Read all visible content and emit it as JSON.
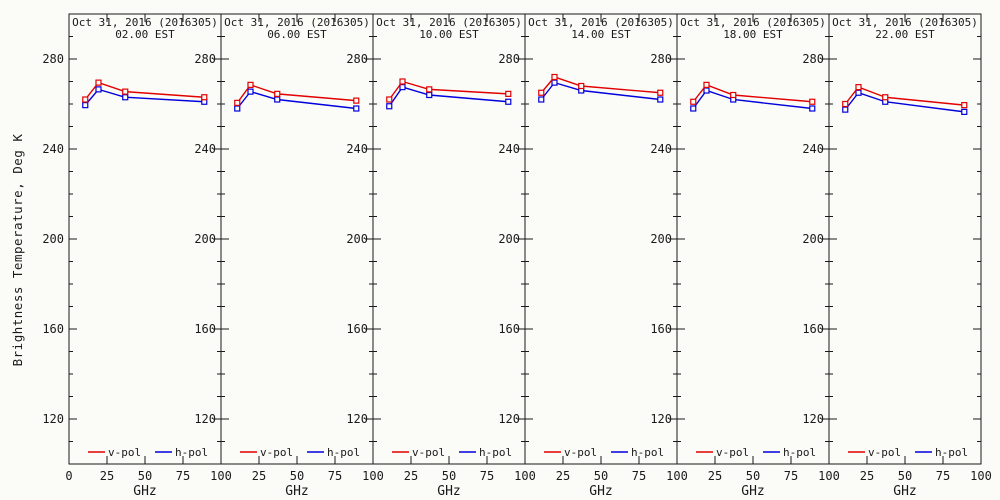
{
  "figure": {
    "background": "#fbfbf8",
    "axis_color": "#1a1a1a"
  },
  "chart_data": {
    "type": "line",
    "title_per_panel_line1": "Oct 31, 2016 (2016305)",
    "xlabel": "GHz",
    "ylabel": "Brightness Temperature, Deg K",
    "xlim": [
      0,
      100
    ],
    "ylim": [
      100,
      300
    ],
    "xticks": [
      0,
      25,
      50,
      75,
      100
    ],
    "yticks": [
      280,
      240,
      200,
      160,
      120
    ],
    "y_minor_tick_interval": 10,
    "grid": false,
    "legend_position": "bottom-inside",
    "x_frequencies_ghz": [
      10.7,
      19.4,
      37,
      89
    ],
    "legend": [
      {
        "label": "v-pol",
        "series_key": "v_pol",
        "color": "#e10000"
      },
      {
        "label": "h-pol",
        "series_key": "h_pol",
        "color": "#0000dc"
      }
    ],
    "panels": [
      {
        "time_label": "02.00 EST",
        "v_pol": [
          262,
          269.5,
          265.5,
          263
        ],
        "h_pol": [
          259.5,
          266.5,
          263,
          261
        ]
      },
      {
        "time_label": "06.00 EST",
        "v_pol": [
          260.5,
          268.5,
          264.5,
          261.5
        ],
        "h_pol": [
          258,
          265.5,
          262,
          258
        ]
      },
      {
        "time_label": "10.00 EST",
        "v_pol": [
          262,
          270,
          266.5,
          264.5
        ],
        "h_pol": [
          259,
          267.5,
          264,
          261
        ]
      },
      {
        "time_label": "14.00 EST",
        "v_pol": [
          265,
          272,
          268,
          265
        ],
        "h_pol": [
          262,
          269.5,
          266,
          262
        ]
      },
      {
        "time_label": "18.00 EST",
        "v_pol": [
          261,
          268.5,
          264,
          261
        ],
        "h_pol": [
          258,
          266,
          262,
          258
        ]
      },
      {
        "time_label": "22.00 EST",
        "v_pol": [
          260,
          267.5,
          263,
          259.5
        ],
        "h_pol": [
          257.5,
          265,
          261,
          256.5
        ]
      }
    ]
  }
}
